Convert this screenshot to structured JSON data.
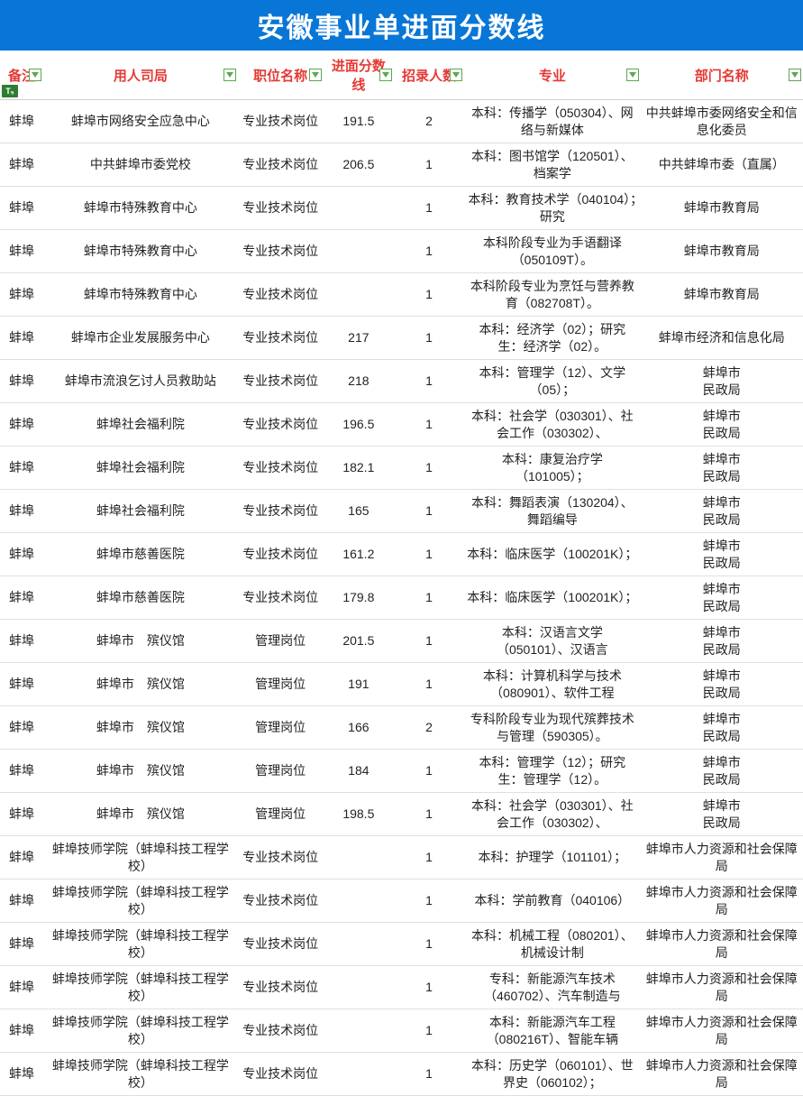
{
  "title": "安徽事业单进面分数线",
  "colors": {
    "title_bg": "#0876d7",
    "title_fg": "#ffffff",
    "header_fg": "#e53935",
    "row_border": "#e0e0e0",
    "filter_border": "#5aa84f",
    "badge_bg": "#2e7d32"
  },
  "columns": [
    {
      "key": "remark",
      "label": "备注",
      "filter": true,
      "badge": "T₅"
    },
    {
      "key": "dept",
      "label": "用人司局",
      "filter": true
    },
    {
      "key": "position",
      "label": "职位名称",
      "filter": true
    },
    {
      "key": "score",
      "label": "进面分数线",
      "filter": true
    },
    {
      "key": "count",
      "label": "招录人数",
      "filter": true
    },
    {
      "key": "major",
      "label": "专业",
      "filter": true
    },
    {
      "key": "agency",
      "label": "部门名称",
      "filter": true
    }
  ],
  "rows": [
    {
      "remark": "蚌埠",
      "dept": "蚌埠市网络安全应急中心",
      "position": "专业技术岗位",
      "score": "191.5",
      "count": "2",
      "major": "本科：传播学（050304）、网络与新媒体",
      "agency": "中共蚌埠市委网络安全和信息化委员"
    },
    {
      "remark": "蚌埠",
      "dept": "中共蚌埠市委党校",
      "position": "专业技术岗位",
      "score": "206.5",
      "count": "1",
      "major": "本科：图书馆学（120501）、 档案学",
      "agency": "中共蚌埠市委（直属）"
    },
    {
      "remark": "蚌埠",
      "dept": "蚌埠市特殊教育中心",
      "position": "专业技术岗位",
      "score": "",
      "count": "1",
      "major": "本科：教育技术学（040104）；　研究",
      "agency": "蚌埠市教育局"
    },
    {
      "remark": "蚌埠",
      "dept": "蚌埠市特殊教育中心",
      "position": "专业技术岗位",
      "score": "",
      "count": "1",
      "major": "本科阶段专业为手语翻译（050109T）。",
      "agency": "蚌埠市教育局"
    },
    {
      "remark": "蚌埠",
      "dept": "蚌埠市特殊教育中心",
      "position": "专业技术岗位",
      "score": "",
      "count": "1",
      "major": "本科阶段专业为烹饪与营养教育（082708T）。",
      "agency": "蚌埠市教育局"
    },
    {
      "remark": "蚌埠",
      "dept": "蚌埠市企业发展服务中心",
      "position": "专业技术岗位",
      "score": "217",
      "count": "1",
      "major": "本科：经济学（02）；研究生：经济学（02）。",
      "agency": "蚌埠市经济和信息化局"
    },
    {
      "remark": "蚌埠",
      "dept": "蚌埠市流浪乞讨人员救助站",
      "position": "专业技术岗位",
      "score": "218",
      "count": "1",
      "major": "本科：管理学（12）、文学（05）；",
      "agency": "蚌埠市\n民政局"
    },
    {
      "remark": "蚌埠",
      "dept": "蚌埠社会福利院",
      "position": "专业技术岗位",
      "score": "196.5",
      "count": "1",
      "major": "本科：社会学（030301）、社会工作（030302）、",
      "agency": "蚌埠市\n民政局"
    },
    {
      "remark": "蚌埠",
      "dept": "蚌埠社会福利院",
      "position": "专业技术岗位",
      "score": "182.1",
      "count": "1",
      "major": "本科：康复治疗学（101005）；",
      "agency": "蚌埠市\n民政局"
    },
    {
      "remark": "蚌埠",
      "dept": "蚌埠社会福利院",
      "position": "专业技术岗位",
      "score": "165",
      "count": "1",
      "major": "本科：舞蹈表演（130204）、舞蹈编导",
      "agency": "蚌埠市\n民政局"
    },
    {
      "remark": "蚌埠",
      "dept": "蚌埠市慈善医院",
      "position": "专业技术岗位",
      "score": "161.2",
      "count": "1",
      "major": "本科：临床医学（100201K）；",
      "agency": "蚌埠市\n民政局"
    },
    {
      "remark": "蚌埠",
      "dept": "蚌埠市慈善医院",
      "position": "专业技术岗位",
      "score": "179.8",
      "count": "1",
      "major": "本科：临床医学（100201K）；",
      "agency": "蚌埠市\n民政局"
    },
    {
      "remark": "蚌埠",
      "dept": "蚌埠市　殡仪馆",
      "position": "管理岗位",
      "score": "201.5",
      "count": "1",
      "major": "本科：汉语言文学（050101）、汉语言",
      "agency": "蚌埠市\n民政局"
    },
    {
      "remark": "蚌埠",
      "dept": "蚌埠市　殡仪馆",
      "position": "管理岗位",
      "score": "191",
      "count": "1",
      "major": "本科：计算机科学与技术（080901）、软件工程",
      "agency": "蚌埠市\n民政局"
    },
    {
      "remark": "蚌埠",
      "dept": "蚌埠市　殡仪馆",
      "position": "管理岗位",
      "score": "166",
      "count": "2",
      "major": "专科阶段专业为现代殡葬技术与管理（590305）。",
      "agency": "蚌埠市\n民政局"
    },
    {
      "remark": "蚌埠",
      "dept": "蚌埠市　殡仪馆",
      "position": "管理岗位",
      "score": "184",
      "count": "1",
      "major": "本科：管理学（12）；研究生：管理学（12）。",
      "agency": "蚌埠市\n民政局"
    },
    {
      "remark": "蚌埠",
      "dept": "蚌埠市　殡仪馆",
      "position": "管理岗位",
      "score": "198.5",
      "count": "1",
      "major": "本科：社会学（030301）、社会工作（030302）、",
      "agency": "蚌埠市\n民政局"
    },
    {
      "remark": "蚌埠",
      "dept": "蚌埠技师学院（蚌埠科技工程学校）",
      "position": "专业技术岗位",
      "score": "",
      "count": "1",
      "major": "本科：护理学（101101）；",
      "agency": "蚌埠市人力资源和社会保障局"
    },
    {
      "remark": "蚌埠",
      "dept": "蚌埠技师学院（蚌埠科技工程学校）",
      "position": "专业技术岗位",
      "score": "",
      "count": "1",
      "major": "本科：学前教育（040106）",
      "agency": "蚌埠市人力资源和社会保障局"
    },
    {
      "remark": "蚌埠",
      "dept": "蚌埠技师学院（蚌埠科技工程学校）",
      "position": "专业技术岗位",
      "score": "",
      "count": "1",
      "major": "本科：机械工程（080201）、机械设计制",
      "agency": "蚌埠市人力资源和社会保障局"
    },
    {
      "remark": "蚌埠",
      "dept": "蚌埠技师学院（蚌埠科技工程学校）",
      "position": "专业技术岗位",
      "score": "",
      "count": "1",
      "major": "专科：新能源汽车技术（460702）、汽车制造与",
      "agency": "蚌埠市人力资源和社会保障局"
    },
    {
      "remark": "蚌埠",
      "dept": "蚌埠技师学院（蚌埠科技工程学校）",
      "position": "专业技术岗位",
      "score": "",
      "count": "1",
      "major": "本科：新能源汽车工程（080216T）、智能车辆",
      "agency": "蚌埠市人力资源和社会保障局"
    },
    {
      "remark": "蚌埠",
      "dept": "蚌埠技师学院（蚌埠科技工程学校）",
      "position": "专业技术岗位",
      "score": "",
      "count": "1",
      "major": "本科：历史学（060101）、世界史（060102）；",
      "agency": "蚌埠市人力资源和社会保障局"
    }
  ]
}
